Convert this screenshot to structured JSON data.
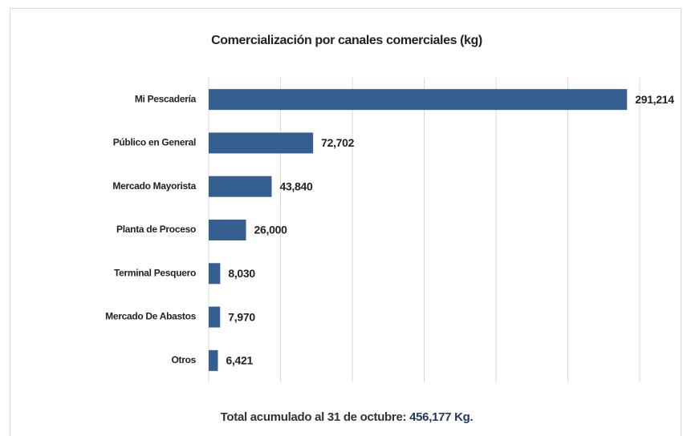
{
  "chart_data": {
    "type": "bar",
    "orientation": "horizontal",
    "title": "Comercialización por canales comerciales (kg)",
    "categories": [
      "Mi Pescadería",
      "Público en General",
      "Mercado Mayorista",
      "Planta de Proceso",
      "Terminal Pesquero",
      "Mercado De Abastos",
      "Otros"
    ],
    "values": [
      291214,
      72702,
      43840,
      26000,
      8030,
      7970,
      6421
    ],
    "value_labels": [
      "291,214",
      "72,702",
      "43,840",
      "26,000",
      "8,030",
      "7,970",
      "6,421"
    ],
    "color": "#365f91",
    "xlim": [
      0,
      300000
    ],
    "xticks": [
      0,
      50000,
      100000,
      150000,
      200000,
      250000,
      300000
    ],
    "grid": true,
    "footer": {
      "text": "Total acumulado al 31 de octubre:",
      "total": "456,177 Kg."
    }
  }
}
